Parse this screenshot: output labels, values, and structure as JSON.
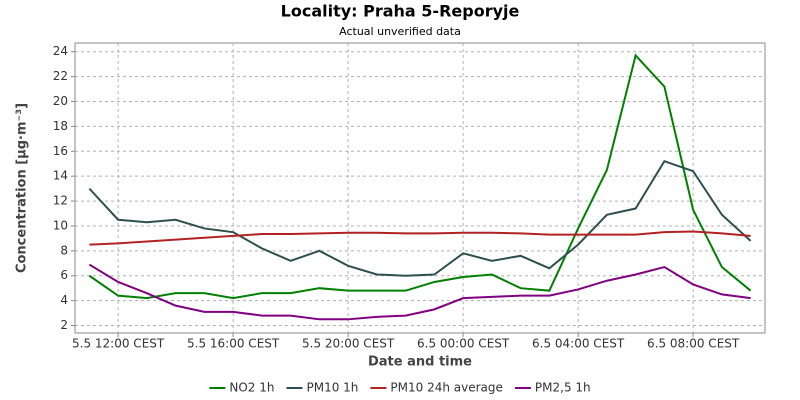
{
  "chart_data": {
    "type": "line",
    "title": "Locality: Praha 5-Reporyje",
    "subtitle": "Actual unverified data",
    "x_label": "Date and time",
    "y_label": "Concentration [µg·m⁻³]",
    "x": [
      11,
      12,
      13,
      14,
      15,
      16,
      17,
      18,
      19,
      20,
      21,
      22,
      23,
      24,
      25,
      26,
      27,
      28,
      29,
      30,
      31,
      32,
      33,
      34
    ],
    "xlim": [
      10.5,
      34.5
    ],
    "xticks": [
      {
        "value": 12,
        "label": "5.5 12:00 CEST"
      },
      {
        "value": 16,
        "label": "5.5 16:00 CEST"
      },
      {
        "value": 20,
        "label": "5.5 20:00 CEST"
      },
      {
        "value": 24,
        "label": "6.5 00:00 CEST"
      },
      {
        "value": 28,
        "label": "6.5 04:00 CEST"
      },
      {
        "value": 32,
        "label": "6.5 08:00 CEST"
      }
    ],
    "ylim": [
      1.4,
      24.7
    ],
    "yticks": [
      2,
      4,
      6,
      8,
      10,
      12,
      14,
      16,
      18,
      20,
      22,
      24
    ],
    "grid": true,
    "legend": "bottom",
    "series": [
      {
        "name": "NO2 1h",
        "color": "#008000",
        "values": [
          6.0,
          4.4,
          4.2,
          4.6,
          4.6,
          4.2,
          4.6,
          4.6,
          5.0,
          4.8,
          4.8,
          4.8,
          5.5,
          5.9,
          6.1,
          5.0,
          4.8,
          9.8,
          14.5,
          23.7,
          21.2,
          11.3,
          6.7,
          4.8
        ]
      },
      {
        "name": "PM10 1h",
        "color": "#2f4f4f",
        "values": [
          13.0,
          10.5,
          10.3,
          10.5,
          9.8,
          9.5,
          8.2,
          7.2,
          8.0,
          6.8,
          6.1,
          6.0,
          6.1,
          7.8,
          7.2,
          7.6,
          6.6,
          8.5,
          10.9,
          11.4,
          15.2,
          14.4,
          10.9,
          8.8
        ]
      },
      {
        "name": "PM10 24h average",
        "color": "#b22222",
        "values": [
          8.5,
          8.6,
          8.75,
          8.9,
          9.05,
          9.2,
          9.35,
          9.35,
          9.4,
          9.45,
          9.45,
          9.4,
          9.4,
          9.45,
          9.45,
          9.4,
          9.3,
          9.3,
          9.3,
          9.3,
          9.5,
          9.55,
          9.4,
          9.2
        ]
      },
      {
        "name": "PM2,5 1h",
        "color": "#800080",
        "values": [
          6.9,
          5.5,
          4.6,
          3.6,
          3.1,
          3.1,
          2.8,
          2.8,
          2.5,
          2.5,
          2.7,
          2.8,
          3.3,
          4.2,
          4.3,
          4.4,
          4.4,
          4.9,
          5.6,
          6.1,
          6.7,
          5.3,
          4.5,
          4.2
        ]
      }
    ]
  }
}
